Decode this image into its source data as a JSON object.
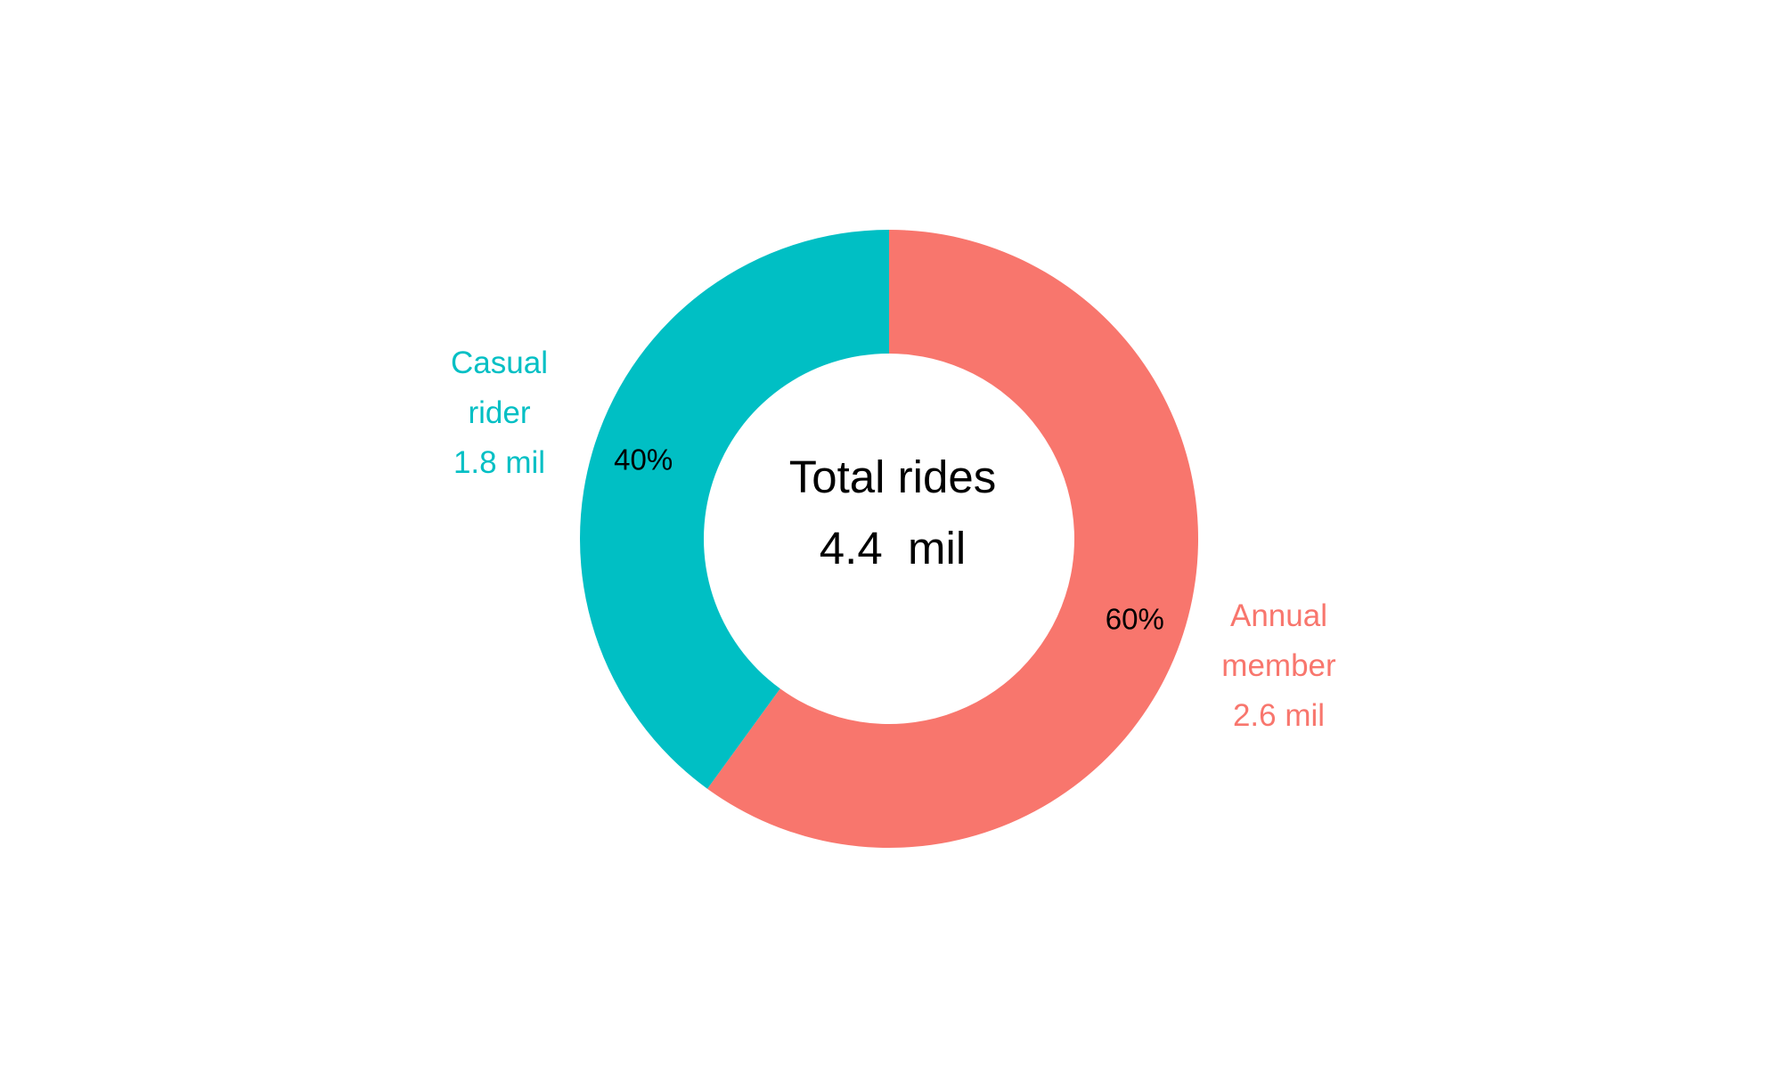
{
  "chart_data": {
    "type": "pie",
    "donut": true,
    "center_label": {
      "line1": "Total rides",
      "line2": "4.4  mil"
    },
    "slices": [
      {
        "name": "Annual member",
        "label_lines": [
          "Annual",
          "member",
          "2.6 mil"
        ],
        "value_mil": 2.6,
        "percent": 60,
        "percent_label": "60%",
        "color": "#F8766D"
      },
      {
        "name": "Casual rider",
        "label_lines": [
          "Casual",
          "rider",
          "1.8 mil"
        ],
        "value_mil": 1.8,
        "percent": 40,
        "percent_label": "40%",
        "color": "#00BFC4"
      }
    ],
    "start": "top",
    "direction": "clockwise",
    "legend": "none",
    "grid": false
  }
}
